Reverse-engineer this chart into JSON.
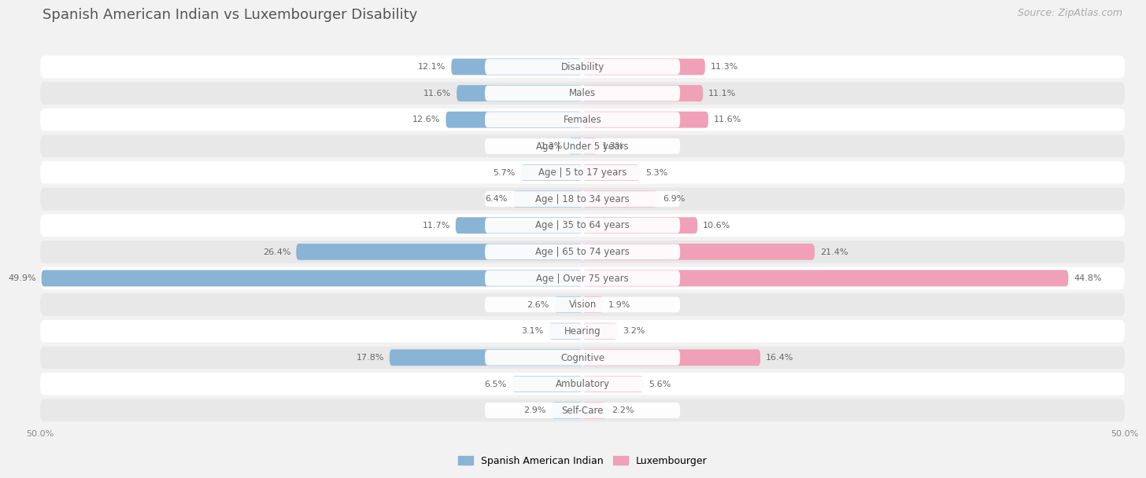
{
  "title": "Spanish American Indian vs Luxembourger Disability",
  "source": "Source: ZipAtlas.com",
  "categories": [
    "Disability",
    "Males",
    "Females",
    "Age | Under 5 years",
    "Age | 5 to 17 years",
    "Age | 18 to 34 years",
    "Age | 35 to 64 years",
    "Age | 65 to 74 years",
    "Age | Over 75 years",
    "Vision",
    "Hearing",
    "Cognitive",
    "Ambulatory",
    "Self-Care"
  ],
  "left_values": [
    12.1,
    11.6,
    12.6,
    1.3,
    5.7,
    6.4,
    11.7,
    26.4,
    49.9,
    2.6,
    3.1,
    17.8,
    6.5,
    2.9
  ],
  "right_values": [
    11.3,
    11.1,
    11.6,
    1.3,
    5.3,
    6.9,
    10.6,
    21.4,
    44.8,
    1.9,
    3.2,
    16.4,
    5.6,
    2.2
  ],
  "left_color": "#8ab4d5",
  "right_color": "#f0a0b8",
  "left_label": "Spanish American Indian",
  "right_label": "Luxembourger",
  "axis_max": 50.0,
  "bg_color": "#f2f2f2",
  "row_color_odd": "#ffffff",
  "row_color_even": "#e8e8e8",
  "title_fontsize": 13,
  "source_fontsize": 9,
  "cat_fontsize": 8.5,
  "val_fontsize": 8,
  "legend_fontsize": 9,
  "tick_fontsize": 8
}
